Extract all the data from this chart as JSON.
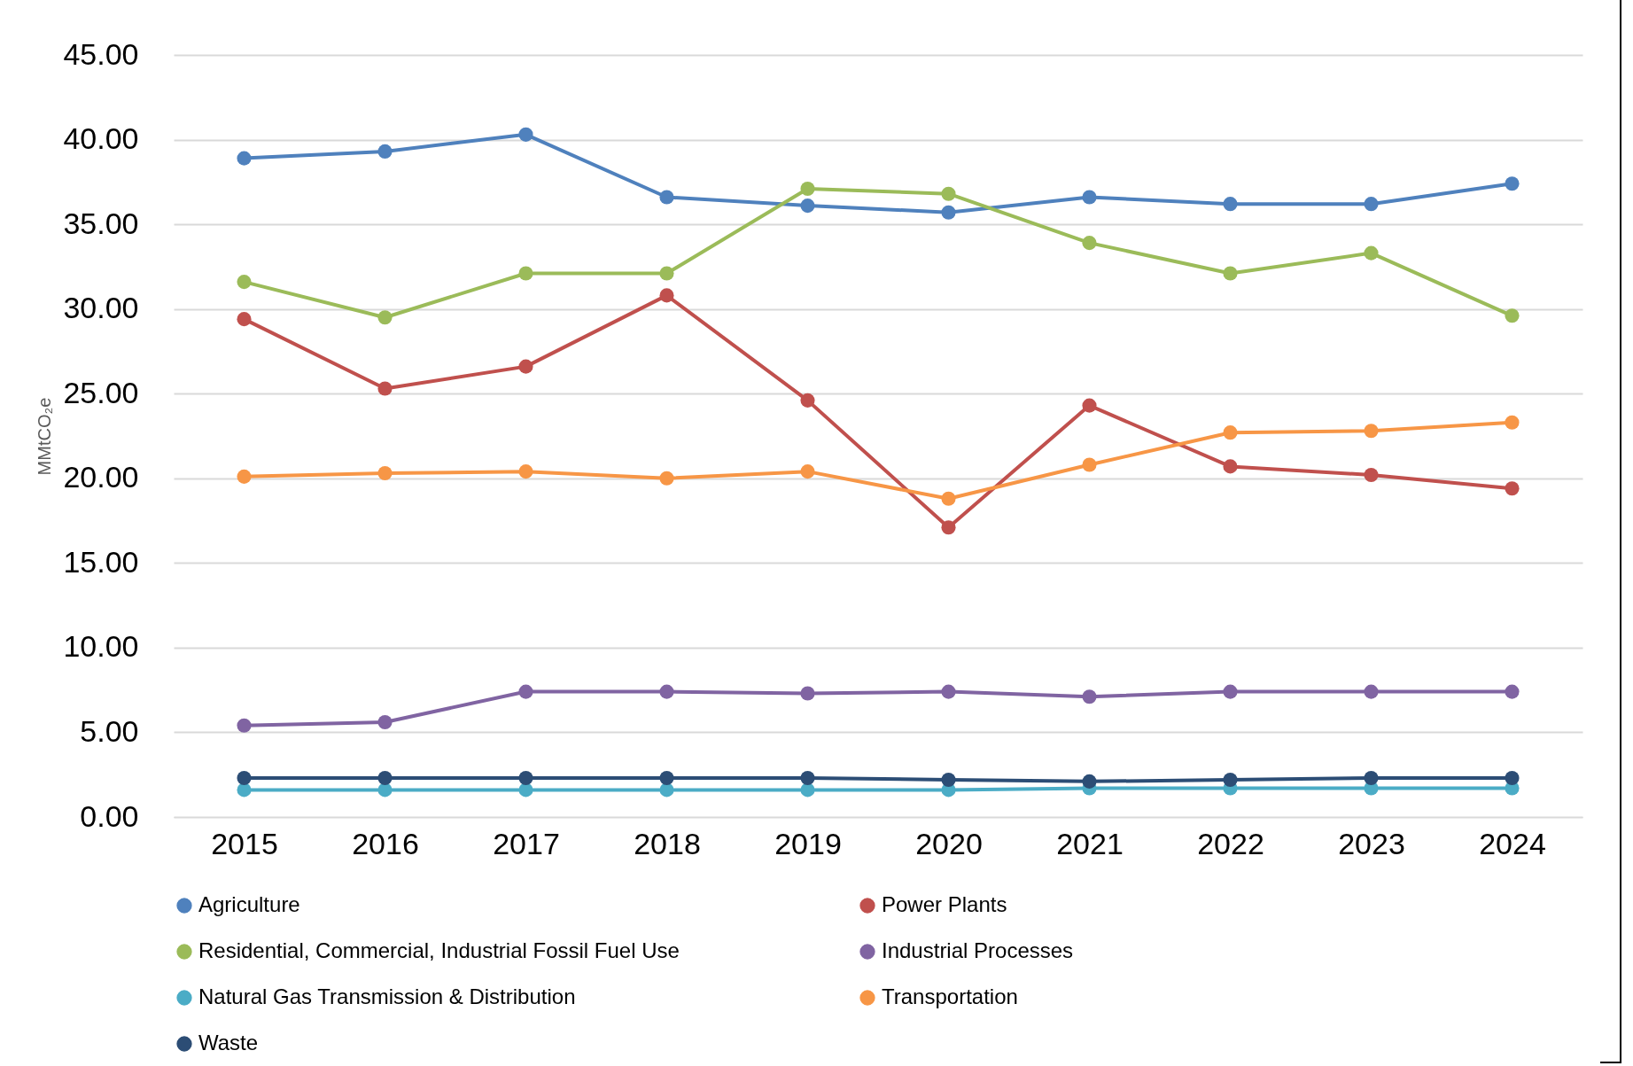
{
  "chart_data": {
    "type": "line",
    "ylabel": "MMtCO₂e",
    "categories": [
      "2015",
      "2016",
      "2017",
      "2018",
      "2019",
      "2020",
      "2021",
      "2022",
      "2023",
      "2024"
    ],
    "ylim": [
      0,
      45
    ],
    "yticks": [
      {
        "value": 0,
        "label": "0.00"
      },
      {
        "value": 5,
        "label": "5.00"
      },
      {
        "value": 10,
        "label": "10.00"
      },
      {
        "value": 15,
        "label": "15.00"
      },
      {
        "value": 20,
        "label": "20.00"
      },
      {
        "value": 25,
        "label": "25.00"
      },
      {
        "value": 30,
        "label": "30.00"
      },
      {
        "value": 35,
        "label": "35.00"
      },
      {
        "value": 40,
        "label": "40.00"
      },
      {
        "value": 45,
        "label": "45.00"
      }
    ],
    "grid": "y",
    "legend": "bottom",
    "marker": "circle",
    "line_style": "solid",
    "series": [
      {
        "name": "Agriculture",
        "color": "#4f81bd",
        "values": [
          38.9,
          39.3,
          40.3,
          36.6,
          36.1,
          35.7,
          36.6,
          36.2,
          36.2,
          37.4
        ]
      },
      {
        "name": "Power Plants",
        "color": "#c0504d",
        "values": [
          29.4,
          25.3,
          26.6,
          30.8,
          24.6,
          17.1,
          24.3,
          20.7,
          20.2,
          19.4
        ]
      },
      {
        "name": "Residential, Commercial, Industrial Fossil Fuel Use",
        "color": "#9bbb59",
        "values": [
          31.6,
          29.5,
          32.1,
          32.1,
          37.1,
          36.8,
          33.9,
          32.1,
          33.3,
          29.6
        ]
      },
      {
        "name": "Industrial Processes",
        "color": "#8064a2",
        "values": [
          5.4,
          5.6,
          7.4,
          7.4,
          7.3,
          7.4,
          7.1,
          7.4,
          7.4,
          7.4
        ]
      },
      {
        "name": "Natural Gas Transmission & Distribution",
        "color": "#4bacc6",
        "values": [
          1.6,
          1.6,
          1.6,
          1.6,
          1.6,
          1.6,
          1.7,
          1.7,
          1.7,
          1.7
        ]
      },
      {
        "name": "Transportation",
        "color": "#f79646",
        "values": [
          20.1,
          20.3,
          20.4,
          20.0,
          20.4,
          18.8,
          20.8,
          22.7,
          22.8,
          23.3
        ]
      },
      {
        "name": "Waste",
        "color": "#2c4d75",
        "values": [
          2.3,
          2.3,
          2.3,
          2.3,
          2.3,
          2.2,
          2.1,
          2.2,
          2.3,
          2.3
        ]
      }
    ]
  }
}
